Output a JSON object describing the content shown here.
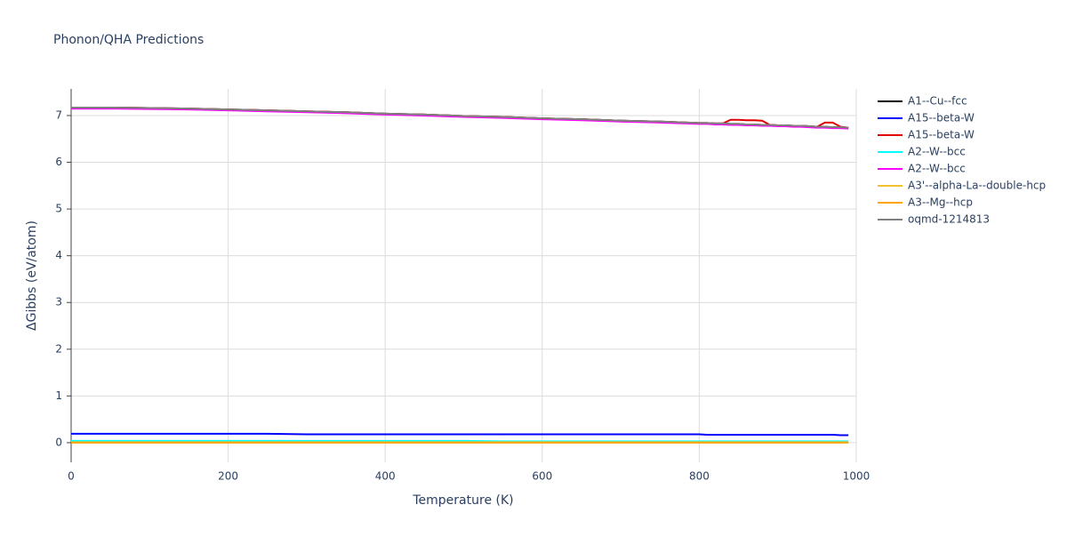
{
  "chart_data": {
    "type": "line",
    "title": "Phonon/QHA Predictions",
    "x_label": "Temperature (K)",
    "y_label": "ΔGibbs (eV/atom)",
    "x": [
      0,
      50,
      100,
      150,
      200,
      250,
      300,
      350,
      400,
      450,
      500,
      550,
      600,
      650,
      700,
      750,
      800,
      810,
      820,
      830,
      840,
      850,
      860,
      870,
      880,
      890,
      900,
      910,
      920,
      930,
      940,
      950,
      960,
      970,
      980,
      990
    ],
    "series": [
      {
        "name": "A1--Cu--fcc",
        "color": "#000000",
        "values": [
          7.17,
          7.17,
          7.16,
          7.15,
          7.13,
          7.11,
          7.09,
          7.07,
          7.04,
          7.02,
          6.99,
          6.97,
          6.94,
          6.92,
          6.89,
          6.87,
          6.84,
          6.84,
          6.83,
          6.83,
          6.82,
          6.82,
          6.81,
          6.81,
          6.8,
          6.8,
          6.79,
          6.79,
          6.78,
          6.78,
          6.77,
          6.76,
          6.76,
          6.75,
          6.75,
          6.74
        ]
      },
      {
        "name": "A15--beta-W",
        "color": "#0000ff",
        "values": [
          0.19,
          0.19,
          0.19,
          0.19,
          0.19,
          0.19,
          0.18,
          0.18,
          0.18,
          0.18,
          0.18,
          0.18,
          0.18,
          0.18,
          0.18,
          0.18,
          0.18,
          0.17,
          0.17,
          0.17,
          0.17,
          0.17,
          0.17,
          0.17,
          0.17,
          0.17,
          0.17,
          0.17,
          0.17,
          0.17,
          0.17,
          0.17,
          0.17,
          0.17,
          0.16,
          0.16
        ]
      },
      {
        "name": "A15--beta-W",
        "color": "#e00000",
        "values": [
          7.17,
          7.17,
          7.16,
          7.15,
          7.13,
          7.11,
          7.09,
          7.07,
          7.04,
          7.02,
          6.99,
          6.97,
          6.94,
          6.92,
          6.89,
          6.87,
          6.84,
          6.84,
          6.83,
          6.83,
          6.91,
          6.91,
          6.9,
          6.9,
          6.89,
          6.8,
          6.79,
          6.79,
          6.78,
          6.78,
          6.77,
          6.76,
          6.85,
          6.85,
          6.76,
          6.74
        ]
      },
      {
        "name": "A2--W--bcc",
        "color": "#00ffff",
        "values": [
          0.04,
          0.04,
          0.04,
          0.04,
          0.04,
          0.04,
          0.04,
          0.04,
          0.04,
          0.04,
          0.04,
          0.03,
          0.03,
          0.03,
          0.03,
          0.03,
          0.03,
          0.03,
          0.03,
          0.03,
          0.03,
          0.03,
          0.03,
          0.03,
          0.03,
          0.03,
          0.03,
          0.03,
          0.03,
          0.03,
          0.03,
          0.03,
          0.03,
          0.03,
          0.03,
          0.03
        ]
      },
      {
        "name": "A2--W--bcc",
        "color": "#ff00ff",
        "values": [
          7.15,
          7.15,
          7.14,
          7.13,
          7.11,
          7.09,
          7.07,
          7.05,
          7.02,
          7.0,
          6.97,
          6.95,
          6.92,
          6.9,
          6.87,
          6.85,
          6.82,
          6.82,
          6.81,
          6.81,
          6.8,
          6.8,
          6.79,
          6.79,
          6.78,
          6.78,
          6.77,
          6.77,
          6.76,
          6.76,
          6.75,
          6.74,
          6.74,
          6.73,
          6.73,
          6.72
        ]
      },
      {
        "name": "A3'--alpha-La--double-hcp",
        "color": "#f2c12e",
        "values": [
          0.01,
          0.01,
          0.01,
          0.01,
          0.01,
          0.01,
          0.01,
          0.01,
          0.01,
          0.01,
          0.01,
          0.01,
          0.01,
          0.01,
          0.01,
          0.01,
          0.01,
          0.01,
          0.01,
          0.01,
          0.01,
          0.01,
          0.01,
          0.01,
          0.01,
          0.01,
          0.01,
          0.01,
          0.01,
          0.01,
          0.01,
          0.01,
          0.01,
          0.01,
          0.01,
          0.01
        ]
      },
      {
        "name": "A3--Mg--hcp",
        "color": "#ffa500",
        "values": [
          0,
          0,
          0,
          0,
          0,
          0,
          0,
          0,
          0,
          0,
          0,
          0,
          0,
          0,
          0,
          0,
          0,
          0,
          0,
          0,
          0,
          0,
          0,
          0,
          0,
          0,
          0,
          0,
          0,
          0,
          0,
          0,
          0,
          0,
          0,
          0
        ]
      },
      {
        "name": "oqmd-1214813",
        "color": "#808080",
        "values": [
          7.17,
          7.17,
          7.16,
          7.15,
          7.13,
          7.11,
          7.09,
          7.07,
          7.04,
          7.02,
          6.99,
          6.97,
          6.94,
          6.92,
          6.89,
          6.87,
          6.84,
          6.84,
          6.83,
          6.83,
          6.82,
          6.82,
          6.81,
          6.81,
          6.8,
          6.8,
          6.79,
          6.79,
          6.78,
          6.78,
          6.77,
          6.76,
          6.76,
          6.75,
          6.75,
          6.74
        ]
      }
    ],
    "xlim": [
      0,
      1000
    ],
    "xticks": [
      0,
      200,
      400,
      600,
      800,
      1000
    ],
    "ylim": [
      -0.42,
      7.57
    ],
    "yticks": [
      0,
      1,
      2,
      3,
      4,
      5,
      6,
      7
    ],
    "grid": true,
    "legend": "right"
  }
}
